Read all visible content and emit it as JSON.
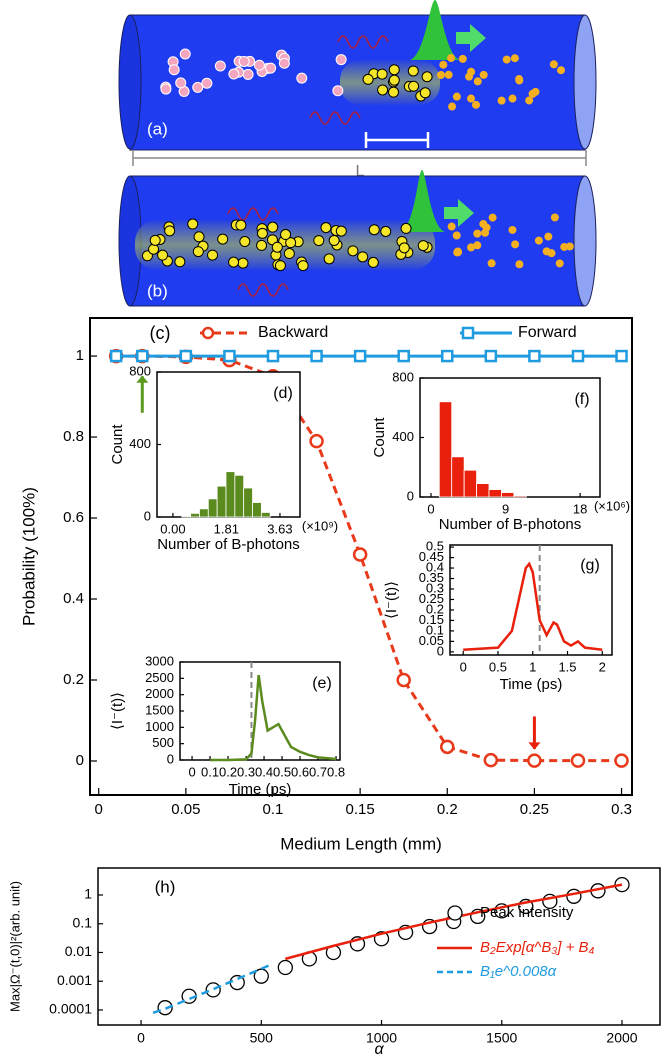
{
  "diagrams": {
    "a": {
      "panel_label": "(a)",
      "gain_length_label": "Lg",
      "length_label": "L"
    },
    "b": {
      "panel_label": "(b)"
    }
  },
  "chart_data": [
    {
      "type": "line",
      "panel_label": "(c)",
      "x_label": "Medium Length (mm)",
      "y_label": "Probability (100%)",
      "x": [
        0.01,
        0.025,
        0.05,
        0.075,
        0.1,
        0.125,
        0.15,
        0.175,
        0.2,
        0.225,
        0.25,
        0.275,
        0.3
      ],
      "series": [
        {
          "name": "Backward",
          "color": "#e8391a",
          "marker": "circle",
          "dashed": true,
          "values": [
            1,
            1,
            0.998,
            0.99,
            0.95,
            0.79,
            0.51,
            0.2,
            0.035,
            0.002,
            0.001,
            0.001,
            0.001
          ]
        },
        {
          "name": "Forward",
          "color": "#1f9be0",
          "marker": "square",
          "dashed": false,
          "values": [
            1,
            1,
            1,
            1,
            1,
            1,
            1,
            1,
            1,
            1,
            1,
            1,
            1
          ]
        }
      ],
      "xlim": [
        -0.005,
        0.306
      ],
      "ylim": [
        -0.084,
        1.094
      ],
      "xticks": [
        0,
        0.05,
        0.1,
        0.15,
        0.2,
        0.25,
        0.3
      ],
      "yticks": [
        0,
        0.2,
        0.4,
        0.6,
        0.8,
        1
      ],
      "arrows": [
        {
          "x": 0.025,
          "color": "#5b9a1e",
          "direction": "up"
        },
        {
          "x": 0.25,
          "color": "#e8200c",
          "direction": "down"
        }
      ]
    },
    {
      "type": "histogram",
      "panel_label": "(d)",
      "x_label": "Number of B-photons",
      "y_label": "Count",
      "x_scale_label": "(×10⁹)",
      "color": "#5b8a1e",
      "bins": [
        0.3,
        0.6,
        0.9,
        1.2,
        1.5,
        1.8,
        2.1,
        2.4,
        2.7,
        3.0,
        3.3
      ],
      "counts": [
        5,
        20,
        45,
        100,
        170,
        250,
        230,
        160,
        80,
        25
      ],
      "xlim": [
        -0.54,
        4.31
      ],
      "ylim": [
        0,
        800
      ],
      "xticks": [
        {
          "value": 0,
          "label": "0.00"
        },
        1.81,
        3.63
      ],
      "yticks": [
        0,
        400,
        800
      ]
    },
    {
      "type": "histogram",
      "panel_label": "(f)",
      "x_label": "Number of B-photons",
      "y_label": "Count",
      "x_scale_label": "(×10⁶)",
      "color": "#e8200c",
      "bins": [
        1,
        2.5,
        4,
        5.5,
        7,
        8.5,
        10,
        11.5
      ],
      "counts": [
        640,
        270,
        180,
        90,
        50,
        30,
        8
      ],
      "xlim": [
        -1.33,
        20.4
      ],
      "ylim": [
        0,
        800
      ],
      "xticks": [
        0,
        9,
        18
      ],
      "yticks": [
        0,
        400,
        800
      ]
    },
    {
      "type": "line",
      "panel_label": "(e)",
      "x_label": "Time (ps)",
      "y_label": "⟨I⁻(t)⟩",
      "x": [
        0.1,
        0.2,
        0.3,
        0.33,
        0.35,
        0.37,
        0.39,
        0.42,
        0.45,
        0.48,
        0.5,
        0.55,
        0.6,
        0.65,
        0.7,
        0.8
      ],
      "series": [
        {
          "name": null,
          "color": "#5b8a1e",
          "marker": "none",
          "dashed": false,
          "values": [
            0,
            0,
            20,
            200,
            1200,
            2600,
            1800,
            900,
            1000,
            1100,
            900,
            400,
            250,
            150,
            80,
            30
          ]
        }
      ],
      "vline": 0.33,
      "xlim": [
        -0.067,
        0.822
      ],
      "ylim": [
        0,
        3000
      ],
      "xticks": [
        0,
        0.1,
        0.2,
        0.3,
        0.4,
        0.5,
        0.6,
        0.7,
        0.8
      ],
      "yticks": [
        0,
        500,
        1000,
        1500,
        2000,
        2500,
        3000
      ]
    },
    {
      "type": "line",
      "panel_label": "(g)",
      "x_label": "Time (ps)",
      "y_label": "⟨I⁻(t)⟩",
      "x": [
        0,
        0.5,
        0.7,
        0.8,
        0.9,
        0.95,
        1.0,
        1.1,
        1.2,
        1.3,
        1.35,
        1.45,
        1.55,
        1.65,
        1.75,
        2
      ],
      "series": [
        {
          "name": null,
          "color": "#e8200c",
          "marker": "none",
          "dashed": false,
          "values": [
            0.01,
            0.02,
            0.1,
            0.25,
            0.4,
            0.42,
            0.38,
            0.15,
            0.08,
            0.14,
            0.13,
            0.05,
            0.03,
            0.05,
            0.02,
            0.01
          ]
        }
      ],
      "vline": 1.1,
      "xlim": [
        -0.19,
        2.14
      ],
      "ylim": [
        -0.015,
        0.51
      ],
      "xticks": [
        0,
        0.5,
        1,
        1.5,
        2
      ],
      "yticks": [
        0,
        0.05,
        0.1,
        0.15,
        0.2,
        0.25,
        0.3,
        0.35,
        0.4,
        0.45,
        0.5
      ]
    },
    {
      "type": "scatter",
      "panel_label": "(h)",
      "x_label": "α",
      "y_label": "Max|Ω⁻(t,0)|²(arb. unit)",
      "y_log": true,
      "series": [
        {
          "name": "Peak intensity",
          "color": "#000000",
          "marker": "circle",
          "line": false,
          "dashed": false,
          "x": [
            100,
            200,
            300,
            400,
            500,
            600,
            700,
            800,
            900,
            1000,
            1100,
            1200,
            1300,
            1400,
            1500,
            1600,
            1700,
            1800,
            1900,
            2000
          ],
          "values": [
            0.00012,
            0.0003,
            0.0005,
            0.0009,
            0.0015,
            0.003,
            0.006,
            0.01,
            0.02,
            0.03,
            0.05,
            0.08,
            0.12,
            0.18,
            0.28,
            0.4,
            0.6,
            0.9,
            1.4,
            2.3
          ]
        },
        {
          "name": "B₂Exp[α^B₃] + B₄",
          "color": "#e8200c",
          "marker": "none",
          "line": true,
          "dashed": false,
          "x": [
            600,
            800,
            1000,
            1200,
            1400,
            1600,
            1800,
            2000
          ],
          "values": [
            0.006,
            0.017,
            0.045,
            0.11,
            0.25,
            0.55,
            1.1,
            2.3
          ]
        },
        {
          "name": "B₁e^0.008α",
          "color": "#1f9be0",
          "marker": "none",
          "line": true,
          "dashed": true,
          "x": [
            50,
            100,
            200,
            300,
            400,
            500,
            530
          ],
          "values": [
            8e-05,
            0.00011,
            0.00024,
            0.00053,
            0.0012,
            0.0027,
            0.0035
          ]
        }
      ],
      "xlim": [
        -179,
        2158
      ],
      "ylim": [
        3e-05,
        8.7
      ],
      "xticks": [
        0,
        500,
        1000,
        1500,
        2000
      ],
      "yticks": [
        0.0001,
        0.001,
        0.01,
        0.1,
        1
      ]
    }
  ]
}
